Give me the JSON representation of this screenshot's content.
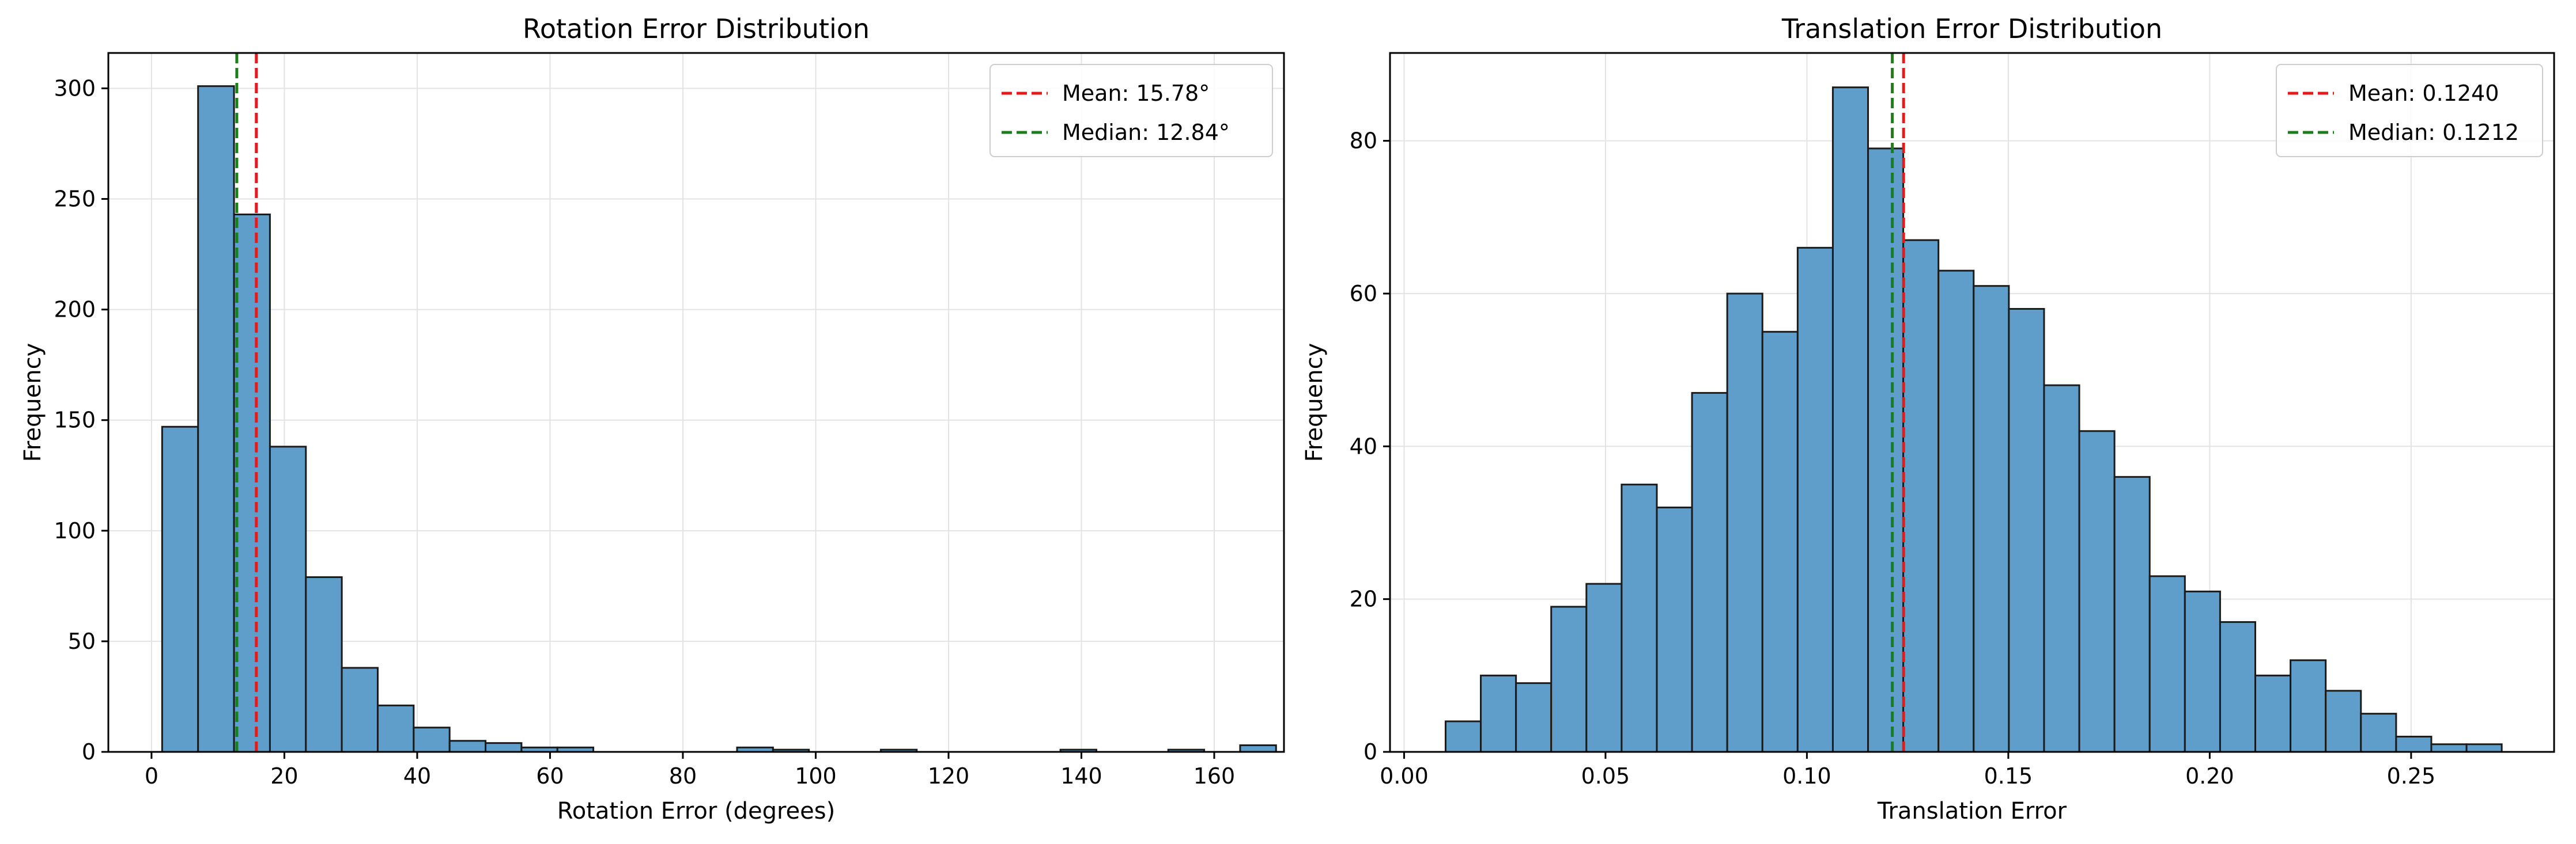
{
  "chart_data": [
    {
      "type": "bar",
      "title": "Rotation Error Distribution",
      "xlabel": "Rotation Error (degrees)",
      "ylabel": "Frequency",
      "xlim": [
        -6.5,
        170.5
      ],
      "ylim": [
        0,
        316
      ],
      "xticks": [
        0,
        20,
        40,
        60,
        80,
        100,
        120,
        140,
        160
      ],
      "yticks": [
        0,
        50,
        100,
        150,
        200,
        250,
        300
      ],
      "grid": true,
      "legend_position": "top-right",
      "bin_start": 1.6,
      "bin_width": 5.41,
      "values": [
        147,
        301,
        243,
        138,
        79,
        38,
        21,
        11,
        5,
        4,
        2,
        2,
        0,
        0,
        0,
        0,
        2,
        1,
        0,
        0,
        1,
        0,
        0,
        0,
        0,
        1,
        0,
        0,
        1,
        0,
        3
      ],
      "bar_color": "#5f9ecb",
      "edge_color": "#1b1b1b",
      "reference_lines": [
        {
          "label": "Mean: 15.78°",
          "value": 15.78,
          "color": "#e41a1c"
        },
        {
          "label": "Median: 12.84°",
          "value": 12.84,
          "color": "#1a7f1a"
        }
      ]
    },
    {
      "type": "bar",
      "title": "Translation Error Distribution",
      "xlabel": "Translation Error",
      "ylabel": "Frequency",
      "xlim": [
        -0.0035,
        0.2855
      ],
      "ylim": [
        0,
        91.5
      ],
      "xticks": [
        0.0,
        0.05,
        0.1,
        0.15,
        0.2,
        0.25
      ],
      "xtick_labels": [
        "0.00",
        "0.05",
        "0.10",
        "0.15",
        "0.20",
        "0.25"
      ],
      "yticks": [
        0,
        20,
        40,
        60,
        80
      ],
      "grid": true,
      "legend_position": "top-right",
      "bin_start": 0.0103,
      "bin_width": 0.00874,
      "values": [
        4,
        10,
        9,
        19,
        22,
        35,
        32,
        47,
        60,
        55,
        66,
        87,
        79,
        67,
        63,
        61,
        58,
        48,
        42,
        36,
        23,
        21,
        17,
        10,
        12,
        8,
        5,
        2,
        1,
        1
      ],
      "bar_color": "#5f9ecb",
      "edge_color": "#1b1b1b",
      "reference_lines": [
        {
          "label": "Mean: 0.1240",
          "value": 0.124,
          "color": "#e41a1c"
        },
        {
          "label": "Median: 0.1212",
          "value": 0.1212,
          "color": "#1a7f1a"
        }
      ]
    }
  ]
}
